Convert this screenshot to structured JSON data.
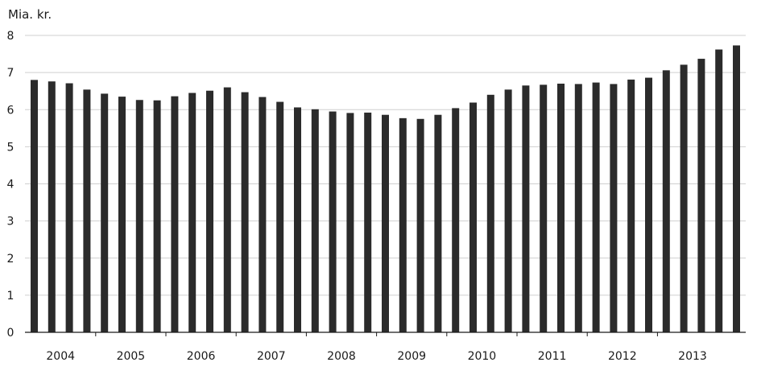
{
  "chart_data": {
    "type": "bar",
    "ylabel": "Mia. kr.",
    "ylim": [
      0,
      8
    ],
    "yticks": [
      0,
      1,
      2,
      3,
      4,
      5,
      6,
      7,
      8
    ],
    "grid": true,
    "legend": "none",
    "colors": {
      "bar": "#2b2b2b",
      "grid": "#cfcfcf",
      "axis": "#1a1a1a",
      "text": "#1a1a1a"
    },
    "year_labels": [
      "2004",
      "2005",
      "2006",
      "2007",
      "2008",
      "2009",
      "2010",
      "2011",
      "2012",
      "2013"
    ],
    "bars_per_year": 4,
    "values": [
      6.8,
      6.76,
      6.71,
      6.54,
      6.43,
      6.35,
      6.26,
      6.25,
      6.36,
      6.45,
      6.51,
      6.6,
      6.47,
      6.34,
      6.21,
      6.06,
      6.01,
      5.95,
      5.91,
      5.92,
      5.86,
      5.77,
      5.75,
      5.86,
      6.04,
      6.19,
      6.4,
      6.54,
      6.65,
      6.67,
      6.7,
      6.69,
      6.73,
      6.69,
      6.81,
      6.86,
      7.06,
      7.21,
      7.37,
      7.62,
      7.73
    ]
  }
}
